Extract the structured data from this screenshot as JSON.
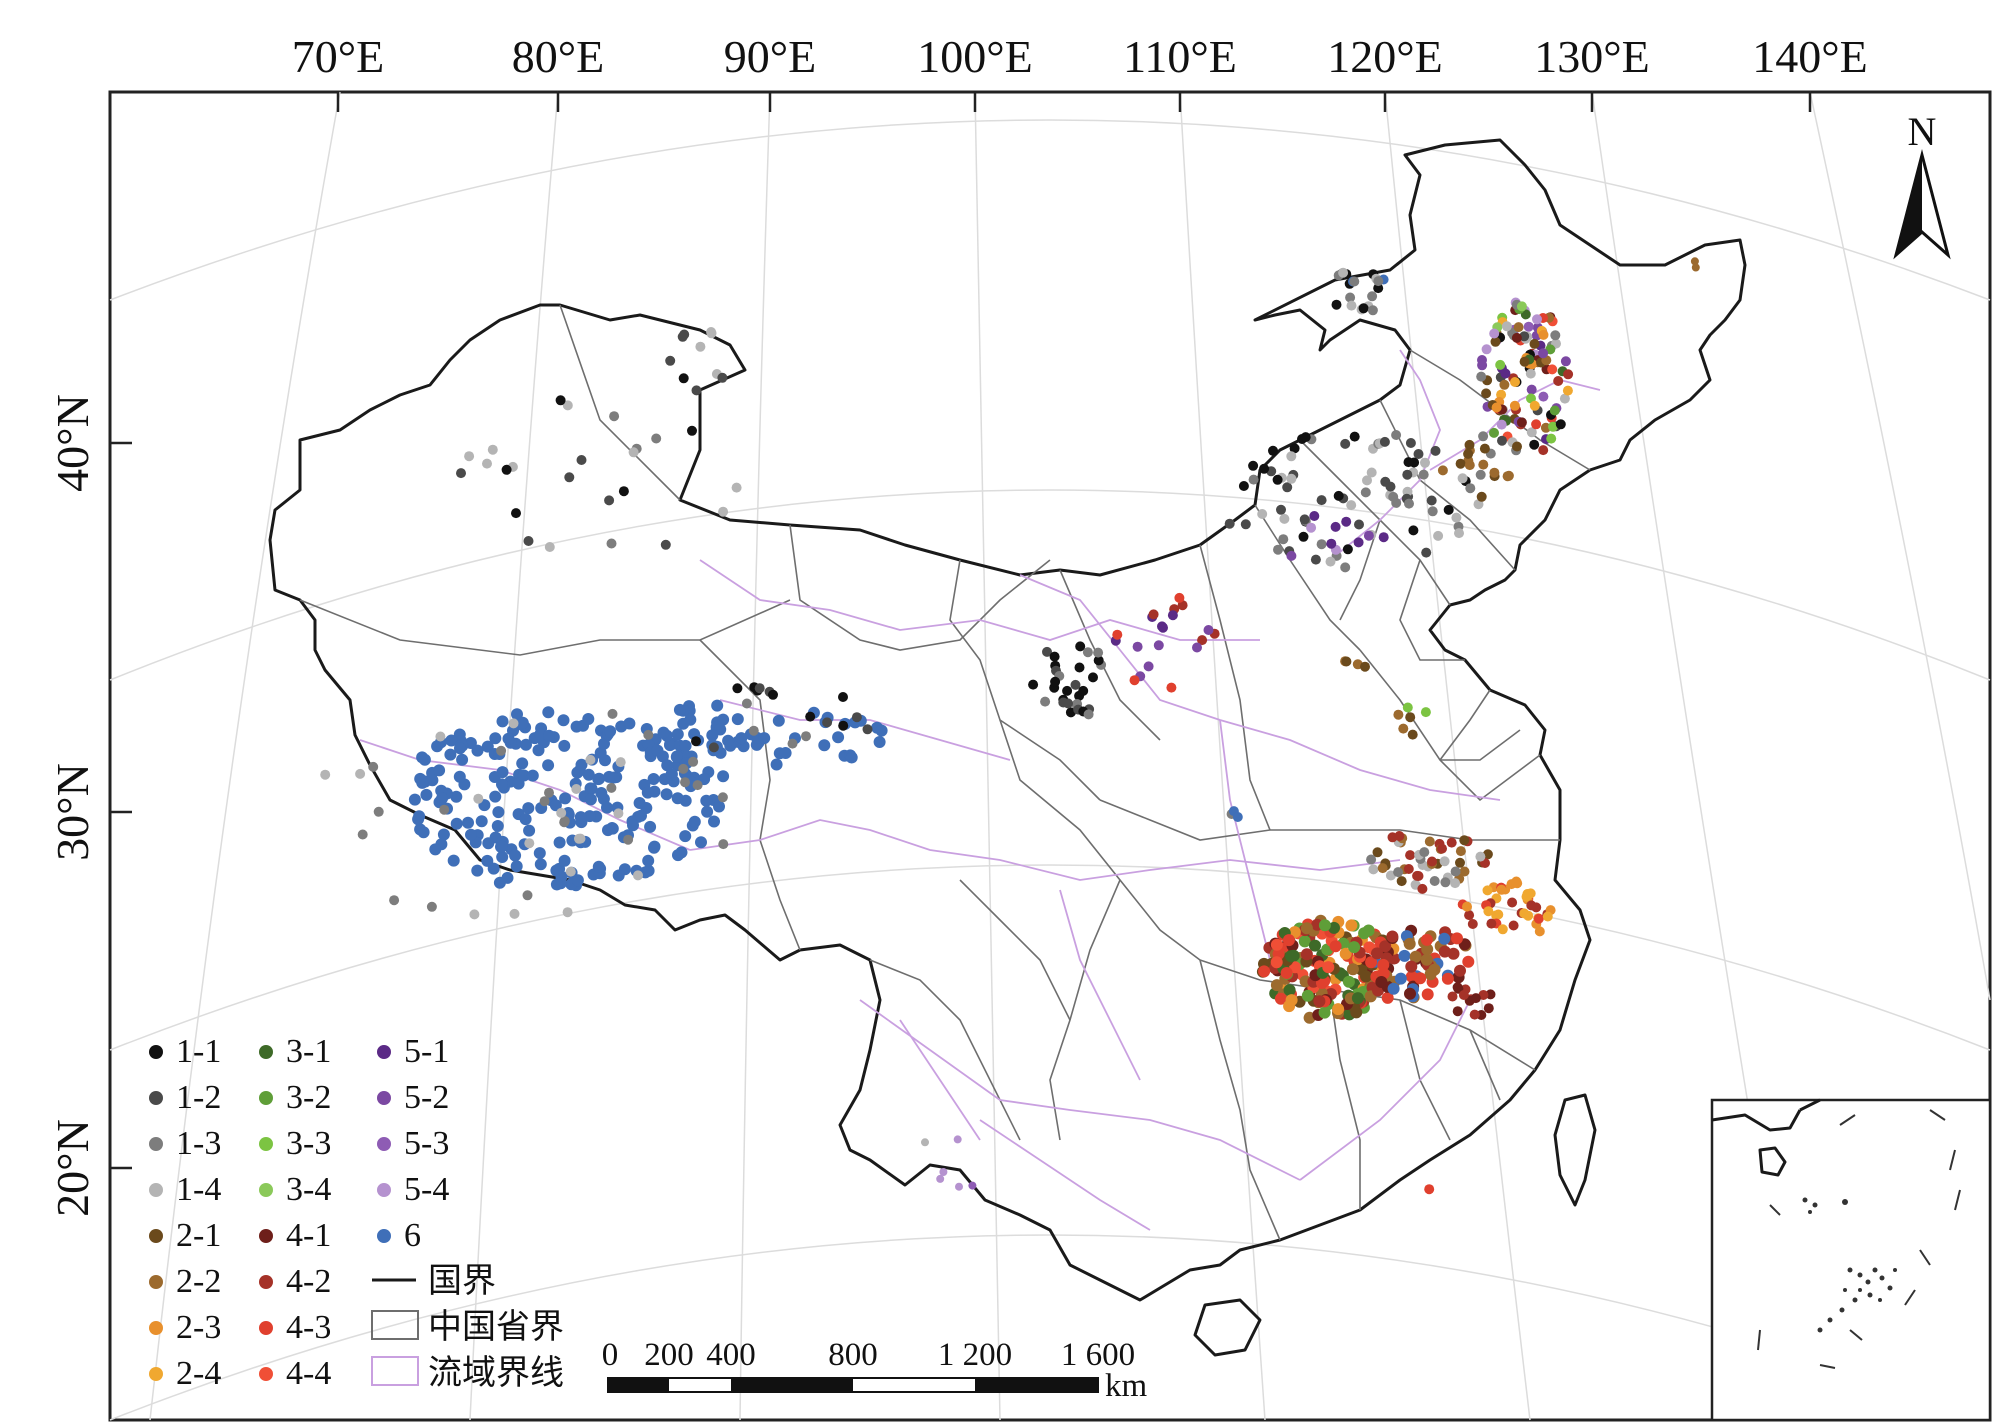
{
  "map": {
    "longitude_labels": [
      "70°E",
      "80°E",
      "90°E",
      "100°E",
      "110°E",
      "120°E",
      "130°E",
      "140°E"
    ],
    "latitude_labels": [
      "40°N",
      "30°N",
      "20°N"
    ],
    "north_label": "N",
    "legend": {
      "points": [
        {
          "label": "1-1",
          "color": "#111111"
        },
        {
          "label": "1-2",
          "color": "#4a4a4a"
        },
        {
          "label": "1-3",
          "color": "#7d7d7d"
        },
        {
          "label": "1-4",
          "color": "#b4b4b4"
        },
        {
          "label": "2-1",
          "color": "#6b4a1c"
        },
        {
          "label": "2-2",
          "color": "#9c6a2e"
        },
        {
          "label": "2-3",
          "color": "#e8902d"
        },
        {
          "label": "2-4",
          "color": "#f0a830"
        },
        {
          "label": "3-1",
          "color": "#3e6a28"
        },
        {
          "label": "3-2",
          "color": "#5f9e38"
        },
        {
          "label": "3-3",
          "color": "#7cc442"
        },
        {
          "label": "3-4",
          "color": "#8bc95a"
        },
        {
          "label": "4-1",
          "color": "#6e1f1a"
        },
        {
          "label": "4-2",
          "color": "#a53228"
        },
        {
          "label": "4-3",
          "color": "#e0402e"
        },
        {
          "label": "4-4",
          "color": "#f04f36"
        },
        {
          "label": "5-1",
          "color": "#5b2a86"
        },
        {
          "label": "5-2",
          "color": "#7b48a2"
        },
        {
          "label": "5-3",
          "color": "#8e5cb4"
        },
        {
          "label": "5-4",
          "color": "#b592cf"
        },
        {
          "label": "6",
          "color": "#3f6fb8"
        }
      ],
      "lines": [
        {
          "label": "国界",
          "color": "#1a1a1a"
        },
        {
          "label": "中国省界",
          "color": "#6e6e6e"
        },
        {
          "label": "流域界线",
          "color": "#c9a0e0"
        }
      ]
    },
    "scale_bar": {
      "ticks": [
        "0",
        "200",
        "400",
        "800",
        "1 200",
        "1 600"
      ],
      "unit": "km"
    }
  }
}
